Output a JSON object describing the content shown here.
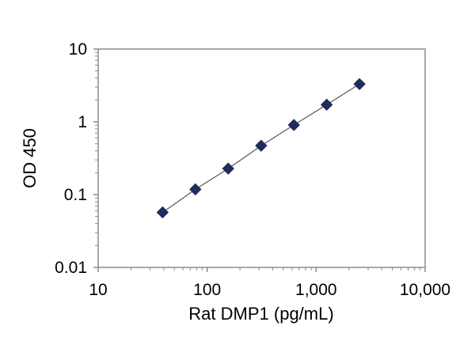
{
  "chart_data": {
    "type": "scatter",
    "title": "",
    "xlabel": "Rat DMP1 (pg/mL)",
    "ylabel": "OD 450",
    "x_scale": "log",
    "y_scale": "log",
    "xlim": [
      10,
      10000
    ],
    "ylim": [
      0.01,
      10
    ],
    "x_ticks": [
      10,
      100,
      1000,
      10000
    ],
    "x_tick_labels": [
      "10",
      "100",
      "1,000",
      "10,000"
    ],
    "y_ticks": [
      0.01,
      0.1,
      1,
      10
    ],
    "y_tick_labels": [
      "0.01",
      "0.1",
      "1",
      "10"
    ],
    "grid": false,
    "legend": "none",
    "series": [
      {
        "marker": "diamond",
        "color": "#1f2d5c",
        "trendline": true,
        "points": [
          {
            "x": 39,
            "y": 0.057
          },
          {
            "x": 78,
            "y": 0.118
          },
          {
            "x": 156,
            "y": 0.228
          },
          {
            "x": 313,
            "y": 0.47
          },
          {
            "x": 625,
            "y": 0.905
          },
          {
            "x": 1250,
            "y": 1.72
          },
          {
            "x": 2500,
            "y": 3.3
          }
        ]
      }
    ]
  }
}
